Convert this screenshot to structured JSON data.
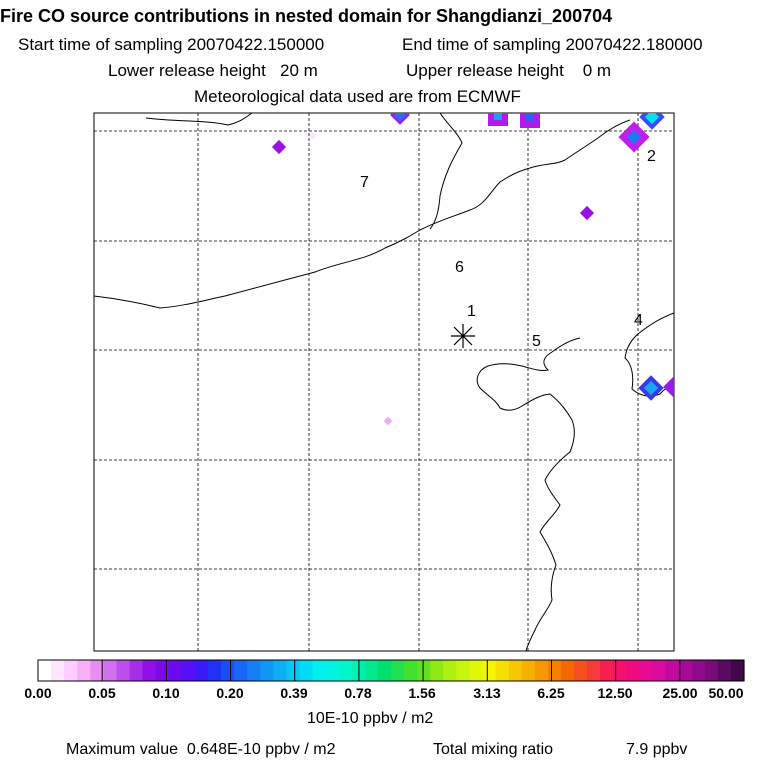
{
  "header": {
    "title": "Fire CO source contributions in nested domain for Shangdianzi_200704",
    "start_time": "Start time of sampling 20070422.150000",
    "end_time": "End time of sampling 20070422.180000",
    "lower_height": "Lower release height   20 m",
    "upper_height": "Upper release height    0 m",
    "met_data": "Meteorological data used are from ECMWF"
  },
  "map": {
    "receptor_symbol": "*",
    "region_labels": [
      "1",
      "2",
      "4",
      "5",
      "6",
      "7"
    ]
  },
  "colorbar": {
    "tick_labels": [
      "0.00",
      "0.05",
      "0.10",
      "0.20",
      "0.39",
      "0.78",
      "1.56",
      "3.13",
      "6.25",
      "12.50",
      "25.00",
      "50.00"
    ],
    "colors": [
      "#ffffff",
      "#ffe6ff",
      "#ffccff",
      "#f9b0f9",
      "#e88ef2",
      "#d070ee",
      "#bd4fee",
      "#a52ee8",
      "#8f0fe6",
      "#7d0ae8",
      "#6a0af0",
      "#5510f5",
      "#3a1af8",
      "#2030f5",
      "#1a4ef5",
      "#1a66f5",
      "#147ef5",
      "#1096f5",
      "#0caef5",
      "#08c6f5",
      "#00dcf5",
      "#00f0ee",
      "#00f5e0",
      "#00f5c8",
      "#00f0b0",
      "#00e890",
      "#00e070",
      "#20e050",
      "#40e030",
      "#60e020",
      "#90e814",
      "#b0f010",
      "#c8f50c",
      "#e0f808",
      "#f5f500",
      "#f5e000",
      "#f5c800",
      "#f5b000",
      "#f59800",
      "#f58000",
      "#f56800",
      "#f55020",
      "#f53a3a",
      "#f52050",
      "#f5106a",
      "#f00a80",
      "#e80a92",
      "#d80aa0",
      "#c00aa0",
      "#a80a98",
      "#900a8c",
      "#780a7c",
      "#5a0a60",
      "#400848"
    ],
    "units": "10E-10 ppbv / m2"
  },
  "footer": {
    "max_value": "Maximum value  0.648E-10 ppbv / m2",
    "total_label": "Total mixing ratio",
    "total_value": "7.9 ppbv"
  }
}
